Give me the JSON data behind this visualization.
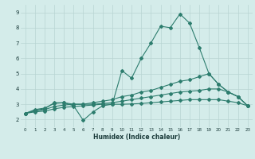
{
  "xlabel": "Humidex (Indice chaleur)",
  "x_values": [
    0,
    1,
    2,
    3,
    4,
    5,
    6,
    7,
    8,
    9,
    10,
    11,
    12,
    13,
    14,
    15,
    16,
    17,
    18,
    19,
    20,
    21,
    22,
    23
  ],
  "line1_y": [
    2.4,
    2.6,
    2.7,
    3.1,
    3.1,
    2.9,
    1.95,
    2.5,
    2.9,
    3.0,
    5.2,
    4.7,
    6.0,
    7.0,
    8.1,
    8.0,
    8.9,
    8.3,
    6.7,
    5.0,
    4.3,
    3.8,
    3.5,
    2.9
  ],
  "line2_y": [
    2.4,
    2.65,
    2.75,
    3.05,
    3.1,
    3.0,
    3.0,
    3.1,
    3.2,
    3.3,
    3.5,
    3.6,
    3.8,
    3.9,
    4.1,
    4.3,
    4.5,
    4.6,
    4.8,
    5.0,
    4.3,
    3.8,
    3.5,
    2.9
  ],
  "line3_y": [
    2.4,
    2.55,
    2.65,
    2.85,
    2.95,
    3.0,
    3.0,
    3.0,
    3.05,
    3.1,
    3.2,
    3.3,
    3.4,
    3.5,
    3.6,
    3.7,
    3.8,
    3.85,
    3.9,
    4.0,
    4.0,
    3.8,
    3.5,
    2.9
  ],
  "line4_y": [
    2.4,
    2.5,
    2.55,
    2.7,
    2.8,
    2.85,
    2.9,
    2.95,
    3.0,
    3.0,
    3.0,
    3.02,
    3.05,
    3.1,
    3.15,
    3.2,
    3.25,
    3.3,
    3.3,
    3.3,
    3.3,
    3.2,
    3.1,
    2.9
  ],
  "line_color": "#2d7d6e",
  "bg_color": "#d4ecea",
  "grid_color": "#b8d4d2",
  "ylim": [
    1.5,
    9.5
  ],
  "xlim": [
    -0.5,
    23.5
  ],
  "yticks": [
    2,
    3,
    4,
    5,
    6,
    7,
    8,
    9
  ],
  "xticks": [
    0,
    1,
    2,
    3,
    4,
    5,
    6,
    7,
    8,
    9,
    10,
    11,
    12,
    13,
    14,
    15,
    16,
    17,
    18,
    19,
    20,
    21,
    22,
    23
  ]
}
